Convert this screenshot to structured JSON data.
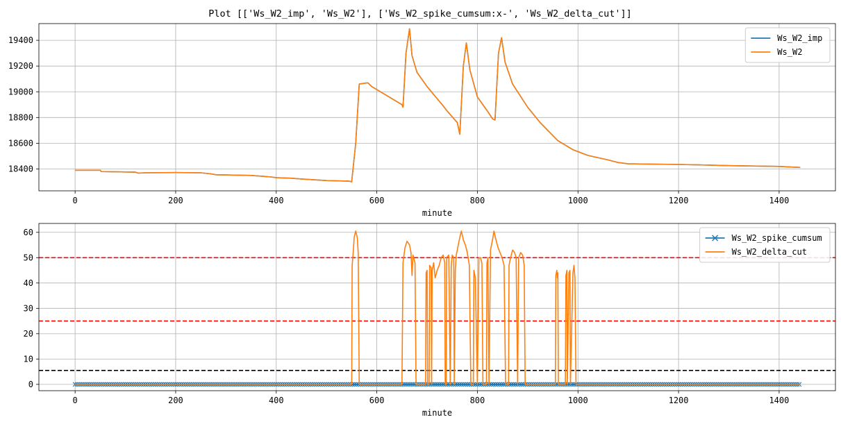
{
  "figure": {
    "title": "Plot [['Ws_W2_imp', 'Ws_W2'], ['Ws_W2_spike_cumsum:x-', 'Ws_W2_delta_cut']]"
  },
  "chart_data": [
    {
      "type": "line",
      "xlabel": "minute",
      "ylabel": "",
      "xlim": [
        -72,
        1512
      ],
      "ylim": [
        18230,
        19530
      ],
      "xticks": [
        0,
        200,
        400,
        600,
        800,
        1000,
        1200,
        1400
      ],
      "yticks": [
        18400,
        18600,
        18800,
        19000,
        19200,
        19400
      ],
      "grid": true,
      "legend_position": "upper right",
      "series": [
        {
          "name": "Ws_W2_imp",
          "color": "#1f77b4",
          "points": [
            [
              0,
              18390
            ],
            [
              50,
              18390
            ],
            [
              52,
              18380
            ],
            [
              120,
              18375
            ],
            [
              125,
              18368
            ],
            [
              140,
              18370
            ],
            [
              200,
              18372
            ],
            [
              250,
              18370
            ],
            [
              270,
              18362
            ],
            [
              280,
              18355
            ],
            [
              350,
              18350
            ],
            [
              390,
              18338
            ],
            [
              400,
              18332
            ],
            [
              430,
              18328
            ],
            [
              450,
              18322
            ],
            [
              500,
              18310
            ],
            [
              545,
              18305
            ],
            [
              550,
              18300
            ],
            [
              558,
              18600
            ],
            [
              565,
              19060
            ],
            [
              582,
              19070
            ],
            [
              590,
              19040
            ],
            [
              620,
              18970
            ],
            [
              650,
              18900
            ],
            [
              652,
              18880
            ],
            [
              658,
              19300
            ],
            [
              665,
              19490
            ],
            [
              670,
              19280
            ],
            [
              680,
              19150
            ],
            [
              700,
              19040
            ],
            [
              730,
              18900
            ],
            [
              740,
              18850
            ],
            [
              760,
              18760
            ],
            [
              765,
              18670
            ],
            [
              772,
              19200
            ],
            [
              778,
              19380
            ],
            [
              785,
              19170
            ],
            [
              800,
              18960
            ],
            [
              820,
              18850
            ],
            [
              830,
              18790
            ],
            [
              835,
              18780
            ],
            [
              842,
              19300
            ],
            [
              848,
              19420
            ],
            [
              855,
              19230
            ],
            [
              870,
              19060
            ],
            [
              900,
              18880
            ],
            [
              925,
              18760
            ],
            [
              940,
              18700
            ],
            [
              960,
              18620
            ],
            [
              990,
              18550
            ],
            [
              1020,
              18505
            ],
            [
              1060,
              18470
            ],
            [
              1080,
              18450
            ],
            [
              1100,
              18440
            ],
            [
              1200,
              18435
            ],
            [
              1240,
              18432
            ],
            [
              1300,
              18426
            ],
            [
              1400,
              18420
            ],
            [
              1442,
              18412
            ]
          ]
        },
        {
          "name": "Ws_W2",
          "color": "#ff7f0e",
          "points": [
            [
              0,
              18390
            ],
            [
              50,
              18390
            ],
            [
              52,
              18380
            ],
            [
              120,
              18375
            ],
            [
              125,
              18368
            ],
            [
              140,
              18370
            ],
            [
              200,
              18372
            ],
            [
              250,
              18370
            ],
            [
              270,
              18362
            ],
            [
              280,
              18355
            ],
            [
              350,
              18350
            ],
            [
              390,
              18338
            ],
            [
              400,
              18332
            ],
            [
              430,
              18328
            ],
            [
              450,
              18322
            ],
            [
              500,
              18310
            ],
            [
              545,
              18305
            ],
            [
              550,
              18300
            ],
            [
              558,
              18600
            ],
            [
              565,
              19060
            ],
            [
              582,
              19070
            ],
            [
              590,
              19040
            ],
            [
              620,
              18970
            ],
            [
              650,
              18900
            ],
            [
              652,
              18880
            ],
            [
              658,
              19300
            ],
            [
              665,
              19490
            ],
            [
              670,
              19280
            ],
            [
              680,
              19150
            ],
            [
              700,
              19040
            ],
            [
              730,
              18900
            ],
            [
              740,
              18850
            ],
            [
              760,
              18760
            ],
            [
              765,
              18670
            ],
            [
              772,
              19200
            ],
            [
              778,
              19380
            ],
            [
              785,
              19170
            ],
            [
              800,
              18960
            ],
            [
              820,
              18850
            ],
            [
              830,
              18790
            ],
            [
              835,
              18780
            ],
            [
              842,
              19300
            ],
            [
              848,
              19420
            ],
            [
              855,
              19230
            ],
            [
              870,
              19060
            ],
            [
              900,
              18880
            ],
            [
              925,
              18760
            ],
            [
              940,
              18700
            ],
            [
              960,
              18620
            ],
            [
              990,
              18550
            ],
            [
              1020,
              18505
            ],
            [
              1060,
              18470
            ],
            [
              1080,
              18450
            ],
            [
              1100,
              18440
            ],
            [
              1200,
              18435
            ],
            [
              1240,
              18432
            ],
            [
              1300,
              18426
            ],
            [
              1400,
              18420
            ],
            [
              1442,
              18412
            ]
          ]
        }
      ]
    },
    {
      "type": "line",
      "xlabel": "minute",
      "ylabel": "",
      "xlim": [
        -72,
        1512
      ],
      "ylim": [
        -2.5,
        63.5
      ],
      "xticks": [
        0,
        200,
        400,
        600,
        800,
        1000,
        1200,
        1400
      ],
      "yticks": [
        0,
        10,
        20,
        30,
        40,
        50,
        60
      ],
      "grid": true,
      "legend_position": "upper right",
      "hlines": [
        {
          "y": 50,
          "color": "#ff0000",
          "style": "dashed"
        },
        {
          "y": 25,
          "color": "#ff0000",
          "style": "dashed"
        },
        {
          "y": 5.5,
          "color": "#000000",
          "style": "dashed"
        }
      ],
      "series": [
        {
          "name": "Ws_W2_spike_cumsum",
          "color": "#1f77b4",
          "marker": "x",
          "x_range": [
            0,
            1442
          ],
          "y_value": 0
        },
        {
          "name": "Ws_W2_delta_cut",
          "color": "#ff7f0e",
          "points": [
            [
              0,
              0
            ],
            [
              550,
              0
            ],
            [
              551,
              47
            ],
            [
              553,
              52
            ],
            [
              555,
              58
            ],
            [
              558,
              60.5
            ],
            [
              561,
              58
            ],
            [
              563,
              52
            ],
            [
              565,
              0
            ],
            [
              650,
              0
            ],
            [
              652,
              48
            ],
            [
              656,
              54
            ],
            [
              660,
              56.5
            ],
            [
              665,
              55
            ],
            [
              668,
              52
            ],
            [
              670,
              43
            ],
            [
              672,
              51
            ],
            [
              676,
              48
            ],
            [
              678,
              0
            ],
            [
              697,
              0
            ],
            [
              698,
              44
            ],
            [
              700,
              45
            ],
            [
              701,
              0
            ],
            [
              704,
              0
            ],
            [
              705,
              47
            ],
            [
              708,
              46
            ],
            [
              709,
              0
            ],
            [
              710,
              45
            ],
            [
              713,
              48
            ],
            [
              716,
              42
            ],
            [
              720,
              45
            ],
            [
              724,
              47
            ],
            [
              728,
              50
            ],
            [
              732,
              51
            ],
            [
              735,
              48
            ],
            [
              736,
              0
            ],
            [
              738,
              0
            ],
            [
              739,
              50
            ],
            [
              743,
              51
            ],
            [
              746,
              0
            ],
            [
              748,
              47
            ],
            [
              750,
              51
            ],
            [
              753,
              50
            ],
            [
              754,
              0
            ],
            [
              756,
              45
            ],
            [
              758,
              51
            ],
            [
              762,
              55
            ],
            [
              765,
              58
            ],
            [
              768,
              60.5
            ],
            [
              772,
              57
            ],
            [
              776,
              55
            ],
            [
              780,
              52
            ],
            [
              784,
              47
            ],
            [
              787,
              0
            ],
            [
              792,
              0
            ],
            [
              793,
              45
            ],
            [
              796,
              42
            ],
            [
              800,
              0
            ],
            [
              803,
              50
            ],
            [
              806,
              50
            ],
            [
              809,
              48
            ],
            [
              811,
              0
            ],
            [
              818,
              0
            ],
            [
              819,
              48
            ],
            [
              821,
              50
            ],
            [
              823,
              0
            ],
            [
              826,
              53
            ],
            [
              830,
              57
            ],
            [
              833,
              60.5
            ],
            [
              837,
              57
            ],
            [
              841,
              54
            ],
            [
              845,
              52
            ],
            [
              849,
              50
            ],
            [
              853,
              47
            ],
            [
              856,
              0
            ],
            [
              862,
              0
            ],
            [
              863,
              47
            ],
            [
              866,
              50
            ],
            [
              870,
              53
            ],
            [
              874,
              52
            ],
            [
              877,
              50
            ],
            [
              880,
              0
            ],
            [
              882,
              50
            ],
            [
              886,
              52
            ],
            [
              890,
              51
            ],
            [
              893,
              47
            ],
            [
              895,
              0
            ],
            [
              955,
              0
            ],
            [
              956,
              43
            ],
            [
              958,
              45
            ],
            [
              959,
              42
            ],
            [
              960,
              44
            ],
            [
              961,
              0
            ],
            [
              975,
              0
            ],
            [
              976,
              43
            ],
            [
              978,
              45
            ],
            [
              979,
              0
            ],
            [
              982,
              44
            ],
            [
              984,
              45
            ],
            [
              985,
              0
            ],
            [
              990,
              44
            ],
            [
              992,
              47
            ],
            [
              994,
              42
            ],
            [
              996,
              0
            ],
            [
              1442,
              0
            ]
          ]
        }
      ]
    }
  ]
}
